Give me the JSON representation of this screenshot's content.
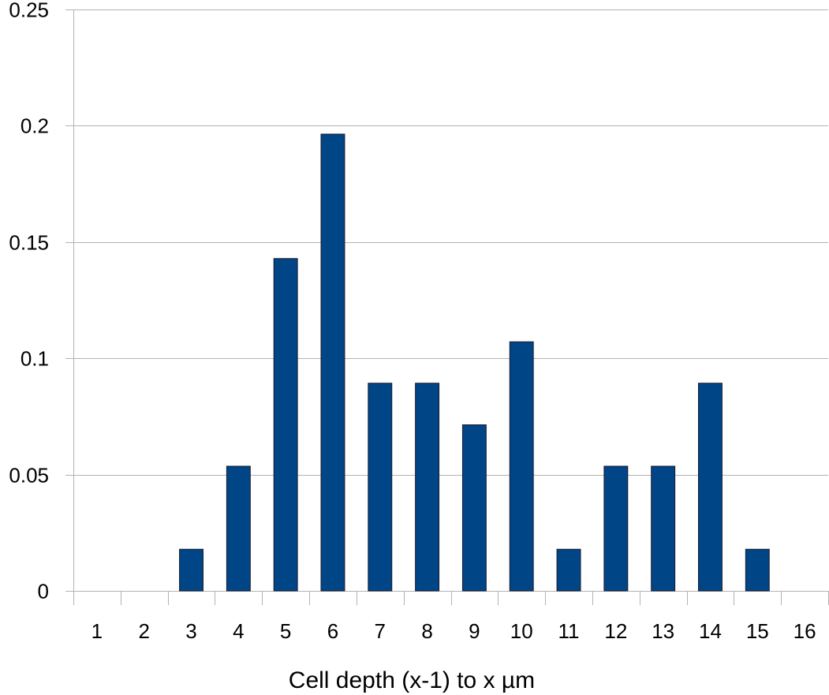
{
  "chart_data": {
    "type": "bar",
    "title": "",
    "xlabel": "Cell depth (x-1) to x µm",
    "ylabel": "",
    "categories": [
      "1",
      "2",
      "3",
      "4",
      "5",
      "6",
      "7",
      "8",
      "9",
      "10",
      "11",
      "12",
      "13",
      "14",
      "15",
      "16"
    ],
    "values": [
      0,
      0,
      0.0179,
      0.0536,
      0.1429,
      0.1964,
      0.0893,
      0.0893,
      0.0714,
      0.1071,
      0.0179,
      0.0536,
      0.0536,
      0.0893,
      0.0179,
      0
    ],
    "ylim": [
      0,
      0.25
    ],
    "yticks": [
      "0",
      "0.05",
      "0.1",
      "0.15",
      "0.2",
      "0.25"
    ],
    "ytick_values": [
      0,
      0.05,
      0.1,
      0.15,
      0.2,
      0.25
    ],
    "grid": "horizontal",
    "legend": "none",
    "bar_color": "#004586",
    "bar_stroke": "#1a1a2e",
    "grid_color": "#b3b3b3",
    "axis_color": "#b3b3b3"
  }
}
